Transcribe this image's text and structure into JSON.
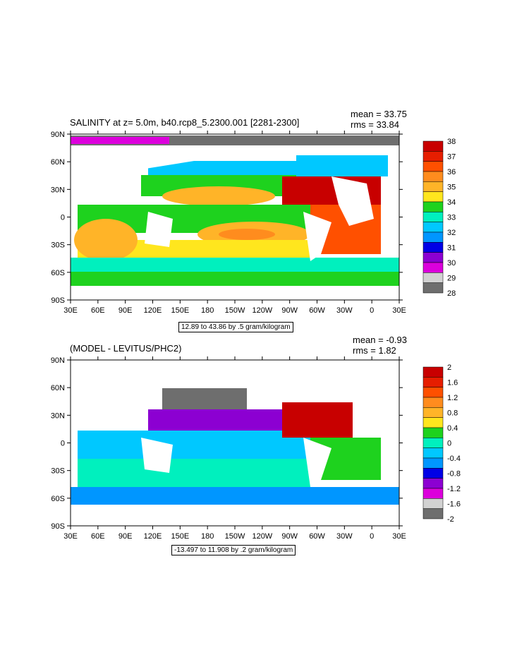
{
  "top_panel": {
    "title": "SALINITY at z=   5.0m, b40.rcp8_5.2300.001 [2281-2300]",
    "mean": "mean = 33.75",
    "rms": "rms = 33.84",
    "info": "12.89 to 43.86 by .5 gram/kilogram",
    "colorbar_labels": [
      "38",
      "37",
      "36",
      "35",
      "34",
      "33",
      "32",
      "31",
      "30",
      "29",
      "28"
    ],
    "colorbar_colors": [
      "#c80000",
      "#e61e00",
      "#ff5000",
      "#ff8c1e",
      "#ffb428",
      "#ffe61e",
      "#1ed21e",
      "#00f0be",
      "#00c8ff",
      "#0096ff",
      "#0000e6",
      "#8c00d2",
      "#dc00dc",
      "#d2d2d2",
      "#6e6e6e"
    ]
  },
  "bottom_panel": {
    "title": "(MODEL - LEVITUS/PHC2)",
    "mean": "mean = -0.93",
    "rms": "rms = 1.82",
    "info": "-13.497 to 11.908 by .2 gram/kilogram",
    "colorbar_labels": [
      "2",
      "1.6",
      "1.2",
      "0.8",
      "0.4",
      "0",
      "-0.4",
      "-0.8",
      "-1.2",
      "-1.6",
      "-2"
    ],
    "colorbar_colors": [
      "#c80000",
      "#e61e00",
      "#ff5000",
      "#ff8c1e",
      "#ffb428",
      "#ffe61e",
      "#1ed21e",
      "#00f0be",
      "#00c8ff",
      "#0096ff",
      "#0000e6",
      "#8c00d2",
      "#dc00dc",
      "#d2d2d2",
      "#6e6e6e"
    ]
  },
  "axes": {
    "lat_labels": [
      "90N",
      "60N",
      "30N",
      "0",
      "30S",
      "60S",
      "90S"
    ],
    "lon_labels": [
      "30E",
      "60E",
      "90E",
      "120E",
      "150E",
      "180",
      "150W",
      "120W",
      "90W",
      "60W",
      "30W",
      "0",
      "30E"
    ]
  }
}
